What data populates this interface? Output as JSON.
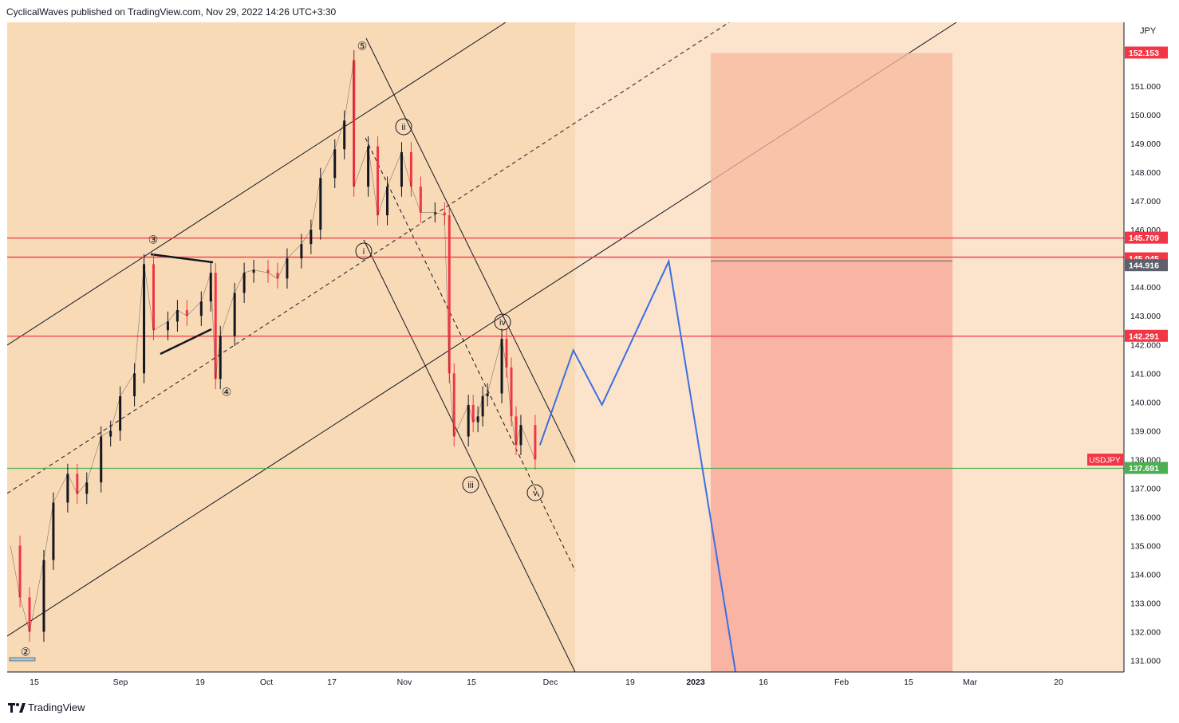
{
  "header": {
    "publish_text": "CyclicalWaves published on TradingView.com, Nov 29, 2022 14:26 UTC+3:30"
  },
  "footer": {
    "brand": "TradingView",
    "logo_icon": "tradingview-logo-icon"
  },
  "colors": {
    "background": "#fbe3cc",
    "channel_fill": "#f8d3a4",
    "target_box": "#f9a899",
    "resistance_line": "#f23645",
    "support_line": "#4caf50",
    "projection": "#3b6fe3",
    "candle_up": "#131722",
    "candle_down": "#f23645"
  },
  "chart_data": {
    "type": "line",
    "symbol": "USDJPY",
    "currency": "JPY",
    "x_axis": {
      "ticks": [
        "15",
        "Sep",
        "19",
        "Oct",
        "17",
        "Nov",
        "15",
        "Dec",
        "19",
        "2023",
        "16",
        "Feb",
        "15",
        "Mar",
        "20"
      ]
    },
    "y_axis": {
      "ticks": [
        "131.000",
        "132.000",
        "133.000",
        "134.000",
        "135.000",
        "136.000",
        "137.000",
        "138.000",
        "139.000",
        "140.000",
        "141.000",
        "142.000",
        "143.000",
        "144.000",
        "145.000",
        "146.000",
        "147.000",
        "148.000",
        "149.000",
        "150.000",
        "151.000"
      ],
      "range": [
        130.6,
        153.2
      ]
    },
    "price_labels": [
      {
        "value": "152.153",
        "color": "#f23645"
      },
      {
        "value": "145.709",
        "color": "#f23645"
      },
      {
        "value": "145.045",
        "color": "#f23645"
      },
      {
        "value": "144.916",
        "color": "#5d606b"
      },
      {
        "value": "142.291",
        "color": "#f23645"
      },
      {
        "value": "137.691",
        "color": "#4caf50"
      }
    ],
    "horizontal_lines": [
      {
        "y": 145.709,
        "color": "#f23645"
      },
      {
        "y": 145.045,
        "color": "#f23645"
      },
      {
        "y": 142.291,
        "color": "#f23645"
      },
      {
        "y": 137.691,
        "color": "#4caf50"
      }
    ],
    "price_series": [
      {
        "date": "2022-08-10",
        "close": 135.0
      },
      {
        "date": "2022-08-12",
        "close": 133.2
      },
      {
        "date": "2022-08-14",
        "close": 132.0
      },
      {
        "date": "2022-08-17",
        "close": 134.5
      },
      {
        "date": "2022-08-19",
        "close": 136.5
      },
      {
        "date": "2022-08-22",
        "close": 137.5
      },
      {
        "date": "2022-08-24",
        "close": 136.8
      },
      {
        "date": "2022-08-26",
        "close": 137.2
      },
      {
        "date": "2022-08-29",
        "close": 138.8
      },
      {
        "date": "2022-08-31",
        "close": 139.0
      },
      {
        "date": "2022-09-02",
        "close": 140.2
      },
      {
        "date": "2022-09-05",
        "close": 141.0
      },
      {
        "date": "2022-09-07",
        "close": 144.8
      },
      {
        "date": "2022-09-09",
        "close": 142.5
      },
      {
        "date": "2022-09-12",
        "close": 142.8
      },
      {
        "date": "2022-09-14",
        "close": 143.2
      },
      {
        "date": "2022-09-16",
        "close": 143.0
      },
      {
        "date": "2022-09-19",
        "close": 143.5
      },
      {
        "date": "2022-09-21",
        "close": 144.5
      },
      {
        "date": "2022-09-22",
        "close": 140.8
      },
      {
        "date": "2022-09-23",
        "close": 142.3
      },
      {
        "date": "2022-09-26",
        "close": 143.8
      },
      {
        "date": "2022-09-28",
        "close": 144.5
      },
      {
        "date": "2022-09-30",
        "close": 144.6
      },
      {
        "date": "2022-10-03",
        "close": 144.5
      },
      {
        "date": "2022-10-05",
        "close": 144.3
      },
      {
        "date": "2022-10-07",
        "close": 145.0
      },
      {
        "date": "2022-10-10",
        "close": 145.5
      },
      {
        "date": "2022-10-12",
        "close": 146.0
      },
      {
        "date": "2022-10-14",
        "close": 147.8
      },
      {
        "date": "2022-10-17",
        "close": 148.8
      },
      {
        "date": "2022-10-19",
        "close": 149.8
      },
      {
        "date": "2022-10-21",
        "close": 151.9
      },
      {
        "date": "2022-10-21",
        "close": 147.5
      },
      {
        "date": "2022-10-24",
        "close": 148.9
      },
      {
        "date": "2022-10-26",
        "close": 146.5
      },
      {
        "date": "2022-10-28",
        "close": 147.5
      },
      {
        "date": "2022-10-31",
        "close": 148.7
      },
      {
        "date": "2022-11-02",
        "close": 147.5
      },
      {
        "date": "2022-11-04",
        "close": 146.6
      },
      {
        "date": "2022-11-07",
        "close": 146.6
      },
      {
        "date": "2022-11-09",
        "close": 146.5
      },
      {
        "date": "2022-11-10",
        "close": 141.0
      },
      {
        "date": "2022-11-11",
        "close": 138.8
      },
      {
        "date": "2022-11-14",
        "close": 139.9
      },
      {
        "date": "2022-11-15",
        "close": 139.3
      },
      {
        "date": "2022-11-16",
        "close": 139.5
      },
      {
        "date": "2022-11-17",
        "close": 140.2
      },
      {
        "date": "2022-11-18",
        "close": 140.3
      },
      {
        "date": "2022-11-21",
        "close": 142.2
      },
      {
        "date": "2022-11-22",
        "close": 141.2
      },
      {
        "date": "2022-11-23",
        "close": 139.5
      },
      {
        "date": "2022-11-24",
        "close": 138.5
      },
      {
        "date": "2022-11-25",
        "close": 139.2
      },
      {
        "date": "2022-11-28",
        "close": 138.0
      }
    ],
    "forecast_path": [
      {
        "date": "2022-11-29",
        "price": 138.5
      },
      {
        "date": "2022-12-06",
        "price": 141.8
      },
      {
        "date": "2022-12-12",
        "price": 139.9
      },
      {
        "date": "2022-12-26",
        "price": 144.9
      },
      {
        "date": "2023-01-09",
        "price": 130.6
      }
    ],
    "wave_labels": [
      "②",
      "③",
      "④",
      "⑤",
      "i",
      "ii",
      "iii",
      "iv",
      "v"
    ],
    "target_box": {
      "from": "2023-01-01",
      "to": "2023-02-28",
      "top": 152.153,
      "bottom": 130.6,
      "split": 144.916
    },
    "symbol_tag": "USDJPY"
  }
}
